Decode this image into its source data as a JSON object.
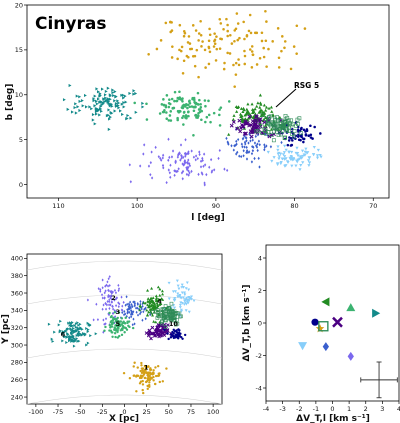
{
  "chart_data": [
    {
      "type": "scatter",
      "title": "Cinyras",
      "xlabel": "l [deg]",
      "ylabel": "b [deg]",
      "xlim": [
        114,
        68
      ],
      "ylim": [
        -1.5,
        20
      ],
      "xticks": [
        "110",
        "100",
        "90",
        "80",
        "70"
      ],
      "yticks": [
        "0",
        "5",
        "10",
        "15",
        "20"
      ],
      "annotation": "RSG 5",
      "groups": [
        {
          "id": "1",
          "color": "#d4a017",
          "marker": "dot",
          "center": [
            89,
            15.5
          ],
          "spread": [
            9,
            3.5
          ],
          "n": 130
        },
        {
          "id": "2",
          "color": "#7b68ee",
          "marker": "diamond",
          "center": [
            94,
            2.5
          ],
          "spread": [
            5,
            2.2
          ],
          "n": 110
        },
        {
          "id": "3",
          "color": "#3a5fcd",
          "marker": "diamond",
          "center": [
            86,
            4.5
          ],
          "spread": [
            3,
            1.5
          ],
          "n": 70
        },
        {
          "id": "4",
          "color": "#228b22",
          "marker": "triangle",
          "center": [
            85,
            7.5
          ],
          "spread": [
            3,
            1.5
          ],
          "n": 120
        },
        {
          "id": "5",
          "color": "#3cb371",
          "marker": "dot",
          "center": [
            94,
            8.5
          ],
          "spread": [
            4,
            1.5
          ],
          "n": 120
        },
        {
          "id": "6",
          "color": "#138a8a",
          "marker": "triangle-right",
          "center": [
            104,
            9
          ],
          "spread": [
            4.5,
            2
          ],
          "n": 120
        },
        {
          "id": "7",
          "color": "#4b0082",
          "marker": "cross",
          "center": [
            85,
            6.5
          ],
          "spread": [
            2.5,
            1.2
          ],
          "n": 70
        },
        {
          "id": "8",
          "color": "#00008b",
          "marker": "dot",
          "center": [
            79,
            5.5
          ],
          "spread": [
            2.5,
            1.2
          ],
          "n": 50
        },
        {
          "id": "9",
          "color": "#87cefa",
          "marker": "triangle-down",
          "center": [
            80,
            3
          ],
          "spread": [
            3,
            1.2
          ],
          "n": 80
        },
        {
          "id": "10",
          "color": "#2e8b57",
          "marker": "square-open",
          "center": [
            82,
            6.5
          ],
          "spread": [
            2.5,
            1.2
          ],
          "n": 90
        }
      ]
    },
    {
      "type": "scatter",
      "xlabel": "X [pc]",
      "ylabel": "Y [pc]",
      "xlim": [
        -110,
        110
      ],
      "ylim": [
        232,
        405
      ],
      "xticks": [
        "-100",
        "-75",
        "-50",
        "-25",
        "0",
        "25",
        "50",
        "75",
        "100"
      ],
      "yticks": [
        "240",
        "260",
        "280",
        "300",
        "320",
        "340",
        "360",
        "380",
        "400"
      ],
      "group_labels": [
        "1",
        "2",
        "3",
        "4",
        "5",
        "6",
        "10"
      ],
      "groups": [
        {
          "id": "1",
          "color": "#d4a017",
          "marker": "dot",
          "center": [
            25,
            265
          ],
          "spread": [
            17,
            13
          ],
          "n": 100
        },
        {
          "id": "2",
          "color": "#7b68ee",
          "marker": "diamond",
          "center": [
            -15,
            350
          ],
          "spread": [
            14,
            24
          ],
          "n": 90
        },
        {
          "id": "3",
          "color": "#3a5fcd",
          "marker": "diamond",
          "center": [
            10,
            340
          ],
          "spread": [
            14,
            14
          ],
          "n": 70
        },
        {
          "id": "4",
          "color": "#228b22",
          "marker": "triangle",
          "center": [
            33,
            345
          ],
          "spread": [
            12,
            15
          ],
          "n": 90
        },
        {
          "id": "5",
          "color": "#3cb371",
          "marker": "dot",
          "center": [
            -8,
            322
          ],
          "spread": [
            12,
            12
          ],
          "n": 90
        },
        {
          "id": "6",
          "color": "#138a8a",
          "marker": "triangle-right",
          "center": [
            -58,
            315
          ],
          "spread": [
            18,
            14
          ],
          "n": 110
        },
        {
          "id": "7",
          "color": "#4b0082",
          "marker": "cross",
          "center": [
            38,
            315
          ],
          "spread": [
            11,
            8
          ],
          "n": 60
        },
        {
          "id": "8",
          "color": "#00008b",
          "marker": "dot",
          "center": [
            58,
            312
          ],
          "spread": [
            10,
            7
          ],
          "n": 40
        },
        {
          "id": "9",
          "color": "#87cefa",
          "marker": "triangle-down",
          "center": [
            65,
            355
          ],
          "spread": [
            12,
            18
          ],
          "n": 60
        },
        {
          "id": "10",
          "color": "#2e8b57",
          "marker": "square-open",
          "center": [
            50,
            335
          ],
          "spread": [
            14,
            12
          ],
          "n": 80
        }
      ]
    },
    {
      "type": "scatter",
      "xlabel": "ΔV_T,l [km s⁻¹]",
      "ylabel": "ΔV_T,b [km s⁻¹]",
      "xlim": [
        -4,
        4
      ],
      "ylim": [
        -4.8,
        4.8
      ],
      "xticks": [
        "-4",
        "-3",
        "-2",
        "-1",
        "0",
        "1",
        "2",
        "3",
        "4"
      ],
      "yticks": [
        "-4",
        "-2",
        "0",
        "2",
        "4"
      ],
      "errorbar": {
        "x": 2.8,
        "y": -3.5,
        "xerr": 1.1,
        "yerr": 1.1
      },
      "points": [
        {
          "group": "1",
          "color": "#d4a017",
          "marker": "star",
          "x": -0.75,
          "y": -0.35
        },
        {
          "group": "2",
          "color": "#7b68ee",
          "marker": "diamond",
          "x": 1.1,
          "y": -2.05
        },
        {
          "group": "3",
          "color": "#3a5fcd",
          "marker": "diamond",
          "x": -0.4,
          "y": -1.45
        },
        {
          "group": "4",
          "color": "#228b22",
          "marker": "triangle-left",
          "x": -0.4,
          "y": 1.3
        },
        {
          "group": "5",
          "color": "#3cb371",
          "marker": "triangle",
          "x": 1.1,
          "y": 0.95
        },
        {
          "group": "6",
          "color": "#138a8a",
          "marker": "triangle-right",
          "x": 2.6,
          "y": 0.6
        },
        {
          "group": "7",
          "color": "#4b0082",
          "marker": "cross",
          "x": 0.3,
          "y": 0.05
        },
        {
          "group": "8",
          "color": "#00008b",
          "marker": "dot",
          "x": -1.05,
          "y": 0.05
        },
        {
          "group": "9",
          "color": "#87cefa",
          "marker": "triangle-down",
          "x": -1.8,
          "y": -1.4
        },
        {
          "group": "10",
          "color": "#2e8b57",
          "marker": "square-open",
          "x": -0.55,
          "y": -0.2
        }
      ]
    }
  ]
}
